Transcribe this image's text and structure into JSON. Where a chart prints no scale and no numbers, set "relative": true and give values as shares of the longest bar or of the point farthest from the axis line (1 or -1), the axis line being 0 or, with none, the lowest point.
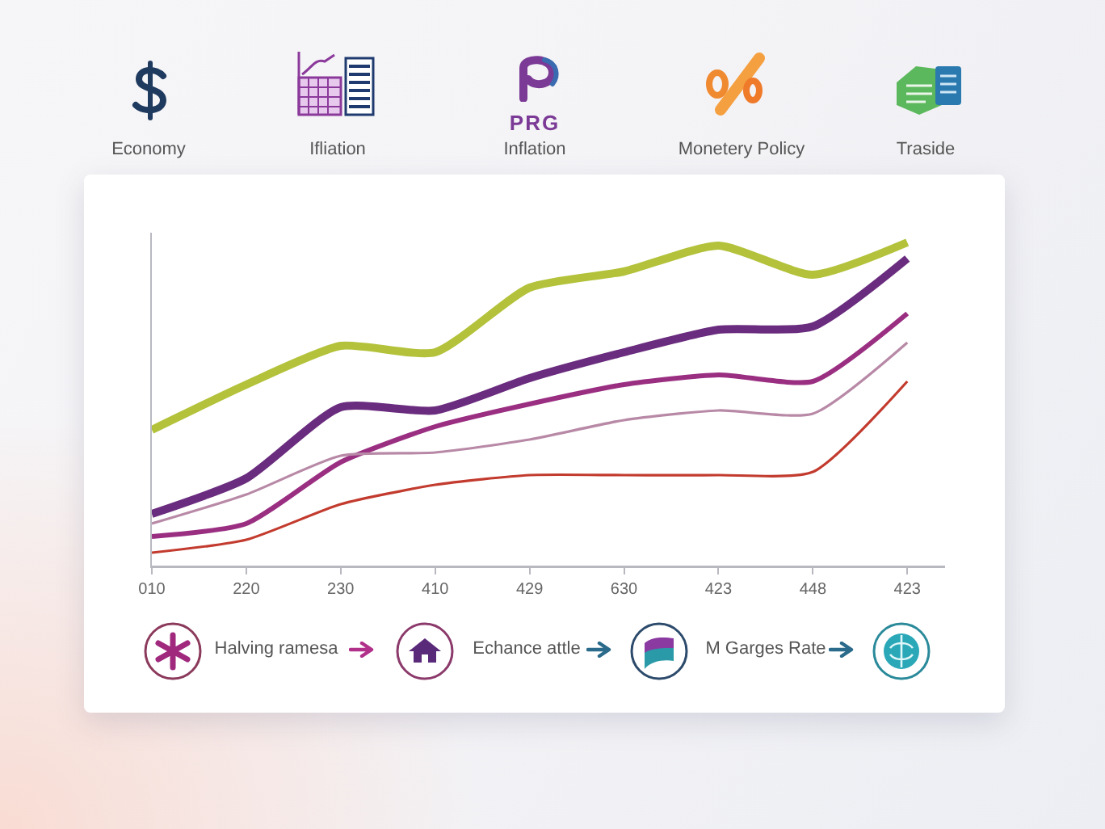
{
  "chart_data": {
    "type": "line",
    "relative": true,
    "categories": [
      "010",
      "220",
      "230",
      "410",
      "429",
      "630",
      "423",
      "448",
      "423"
    ],
    "series": [
      {
        "color": "#b3c23a",
        "values": [
          0.42,
          0.56,
          0.68,
          0.66,
          0.86,
          0.91,
          0.99,
          0.9,
          1.0
        ]
      },
      {
        "color": "#6a2c7e",
        "values": [
          0.16,
          0.27,
          0.49,
          0.48,
          0.58,
          0.66,
          0.73,
          0.74,
          0.95
        ]
      },
      {
        "color": "#9a2f82",
        "values": [
          0.09,
          0.13,
          0.32,
          0.43,
          0.5,
          0.56,
          0.59,
          0.57,
          0.78
        ]
      },
      {
        "color": "#b889a6",
        "values": [
          0.13,
          0.22,
          0.34,
          0.35,
          0.39,
          0.45,
          0.48,
          0.47,
          0.69
        ]
      },
      {
        "color": "#c23b2e",
        "values": [
          0.04,
          0.08,
          0.19,
          0.25,
          0.28,
          0.28,
          0.28,
          0.29,
          0.57
        ]
      }
    ],
    "annotations": [
      "PRG",
      "Economy",
      "Ifliation",
      "Inflation",
      "Monetery Policy",
      "Traside",
      "Halving ramesa",
      "Echance attle",
      "M Garges Rate"
    ]
  }
}
